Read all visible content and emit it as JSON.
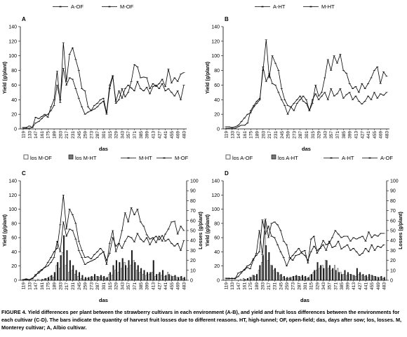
{
  "caption": {
    "text": "FIGURE 4. Yield differences per plant between the strawberry cultivars in each environment (A-B), and yield and fruit loss differences between the environments for each cultivar (C-D). The bars indicate the quantity of harvest fruit losses due to different reasons. HT, high-tunnel; OF, open-field; das, days after sow; los, losses. M, Monterey cultivar; A, Albio cultivar."
  },
  "chart_data": [
    {
      "type": "line",
      "panel_label": "A",
      "ylabel": "Yield (g/plant)",
      "xlabel": "das",
      "ylim": [
        0,
        140
      ],
      "yticks": [
        0,
        20,
        40,
        60,
        80,
        100,
        120,
        140
      ],
      "categories": [
        "119",
        "133",
        "147",
        "161",
        "175",
        "189",
        "203",
        "217",
        "231",
        "245",
        "259",
        "273",
        "287",
        "301",
        "315",
        "329",
        "343",
        "357",
        "371",
        "385",
        "399",
        "413",
        "427",
        "441",
        "455",
        "469",
        "483"
      ],
      "x": [
        119,
        126,
        133,
        140,
        147,
        154,
        161,
        168,
        175,
        182,
        189,
        196,
        203,
        210,
        217,
        224,
        231,
        238,
        245,
        252,
        259,
        266,
        273,
        280,
        287,
        294,
        301,
        308,
        315,
        322,
        329,
        336,
        343,
        350,
        357,
        364,
        371,
        378,
        385,
        392,
        399,
        406,
        413,
        420,
        427,
        434,
        441,
        448,
        455,
        462,
        469,
        476,
        483
      ],
      "legend": [
        {
          "label": "A-OF",
          "marker": "-"
        },
        {
          "label": "M-OF",
          "marker": "-"
        }
      ],
      "series": [
        {
          "name": "A-OF",
          "marker": "-",
          "values": [
            2,
            2,
            4,
            2,
            16,
            14,
            17,
            20,
            16,
            30,
            40,
            79,
            36,
            118,
            65,
            102,
            111,
            95,
            80,
            55,
            52,
            30,
            25,
            32,
            35,
            40,
            42,
            22,
            60,
            73,
            35,
            40,
            55,
            44,
            50,
            65,
            88,
            85,
            70,
            71,
            70,
            55,
            62,
            58,
            62,
            68,
            58,
            82,
            63,
            70,
            65,
            75,
            77
          ]
        },
        {
          "name": "M-OF",
          "marker": "-",
          "values": [
            1,
            1,
            1,
            2,
            8,
            10,
            14,
            18,
            20,
            25,
            32,
            60,
            40,
            83,
            60,
            70,
            68,
            55,
            42,
            30,
            20,
            23,
            25,
            27,
            30,
            35,
            38,
            20,
            55,
            72,
            38,
            52,
            42,
            55,
            60,
            56,
            52,
            65,
            55,
            52,
            57,
            48,
            58,
            60,
            55,
            62,
            52,
            55,
            50,
            45,
            52,
            40,
            60
          ]
        }
      ]
    },
    {
      "type": "line",
      "panel_label": "B",
      "ylabel": "Yield (g/plant)",
      "xlabel": "das",
      "ylim": [
        0,
        140
      ],
      "yticks": [
        0,
        20,
        40,
        60,
        80,
        100,
        120,
        140
      ],
      "categories": [
        "119",
        "133",
        "147",
        "161",
        "175",
        "189",
        "203",
        "217",
        "231",
        "245",
        "259",
        "273",
        "287",
        "301",
        "315",
        "329",
        "343",
        "357",
        "371",
        "385",
        "399",
        "413",
        "427",
        "441",
        "455",
        "469",
        "483"
      ],
      "x": [
        119,
        126,
        133,
        140,
        147,
        154,
        161,
        168,
        175,
        182,
        189,
        196,
        203,
        210,
        217,
        224,
        231,
        238,
        245,
        252,
        259,
        266,
        273,
        280,
        287,
        294,
        301,
        308,
        315,
        322,
        329,
        336,
        343,
        350,
        357,
        364,
        371,
        378,
        385,
        392,
        399,
        406,
        413,
        420,
        427,
        434,
        441,
        448,
        455,
        462,
        469,
        476,
        483
      ],
      "legend": [
        {
          "label": "A-HT",
          "marker": "-"
        },
        {
          "label": "M-HT",
          "marker": "-"
        }
      ],
      "series": [
        {
          "name": "A-HT",
          "marker": "-",
          "values": [
            3,
            3,
            2,
            3,
            5,
            10,
            15,
            20,
            22,
            30,
            35,
            40,
            85,
            65,
            75,
            62,
            60,
            50,
            40,
            32,
            20,
            30,
            35,
            40,
            45,
            38,
            35,
            25,
            40,
            48,
            40,
            45,
            50,
            40,
            55,
            45,
            48,
            55,
            42,
            47,
            50,
            40,
            45,
            38,
            34,
            38,
            45,
            40,
            50,
            42,
            48,
            46,
            50
          ]
        },
        {
          "name": "M-HT",
          "marker": "-",
          "values": [
            1,
            1,
            1,
            1,
            3,
            5,
            5,
            8,
            25,
            32,
            38,
            42,
            80,
            122,
            70,
            100,
            90,
            80,
            55,
            40,
            32,
            30,
            25,
            35,
            40,
            45,
            40,
            25,
            35,
            60,
            45,
            50,
            70,
            95,
            80,
            100,
            90,
            102,
            80,
            76,
            62,
            55,
            58,
            50,
            62,
            55,
            62,
            70,
            80,
            85,
            62,
            78,
            72
          ]
        }
      ]
    },
    {
      "type": "line+bar",
      "panel_label": "C",
      "ylabel": "Yield (g/plant)",
      "ylabel_right": "Losses (g/plant)",
      "xlabel": "das",
      "ylim": [
        0,
        140
      ],
      "yticks": [
        0,
        20,
        40,
        60,
        80,
        100,
        120,
        140
      ],
      "ylim_right": [
        0,
        100
      ],
      "yticks_right": [
        0,
        10,
        20,
        30,
        40,
        50,
        60,
        70,
        80,
        90,
        100
      ],
      "categories": [
        "119",
        "133",
        "147",
        "161",
        "175",
        "189",
        "203",
        "217",
        "231",
        "245",
        "259",
        "273",
        "287",
        "301",
        "315",
        "329",
        "343",
        "357",
        "371",
        "385",
        "399",
        "413",
        "427",
        "441",
        "455",
        "469",
        "483"
      ],
      "x": [
        119,
        126,
        133,
        140,
        147,
        154,
        161,
        168,
        175,
        182,
        189,
        196,
        203,
        210,
        217,
        224,
        231,
        238,
        245,
        252,
        259,
        266,
        273,
        280,
        287,
        294,
        301,
        308,
        315,
        322,
        329,
        336,
        343,
        350,
        357,
        364,
        371,
        378,
        385,
        392,
        399,
        406,
        413,
        420,
        427,
        434,
        441,
        448,
        455,
        462,
        469,
        476,
        483
      ],
      "legend": [
        {
          "label": "los M-OF",
          "marker": "bar-open"
        },
        {
          "label": "los M-HT",
          "marker": "bar-filled"
        },
        {
          "label": "M-HT",
          "marker": "-"
        },
        {
          "label": "M-OF",
          "marker": "-"
        }
      ],
      "series": [
        {
          "name": "M-HT",
          "marker": "-",
          "values": [
            1,
            2,
            1,
            3,
            6,
            12,
            15,
            18,
            25,
            32,
            40,
            45,
            78,
            120,
            72,
            100,
            92,
            80,
            55,
            42,
            32,
            33,
            30,
            36,
            40,
            45,
            40,
            28,
            38,
            60,
            48,
            52,
            70,
            95,
            82,
            102,
            92,
            100,
            82,
            76,
            64,
            58,
            60,
            53,
            62,
            55,
            65,
            72,
            82,
            83,
            65,
            76,
            70
          ]
        },
        {
          "name": "M-OF",
          "marker": "-",
          "values": [
            1,
            1,
            1,
            2,
            8,
            10,
            14,
            18,
            20,
            25,
            32,
            55,
            40,
            82,
            62,
            72,
            70,
            58,
            42,
            32,
            22,
            25,
            27,
            29,
            32,
            37,
            40,
            22,
            52,
            70,
            40,
            52,
            45,
            55,
            62,
            60,
            54,
            66,
            58,
            54,
            60,
            50,
            58,
            62,
            57,
            63,
            55,
            58,
            52,
            48,
            52,
            42,
            56
          ]
        },
        {
          "name": "los M-OF",
          "marker": "bar-open",
          "values": [
            0,
            0,
            0,
            0,
            0,
            1,
            0,
            1,
            2,
            4,
            3,
            15,
            12,
            28,
            15,
            8,
            10,
            6,
            4,
            2,
            1,
            2,
            3,
            3,
            4,
            3,
            3,
            2,
            6,
            5,
            10,
            8,
            12,
            18,
            12,
            15,
            20,
            10,
            8,
            6,
            5,
            6,
            8,
            4,
            6,
            5,
            4,
            8,
            5,
            4,
            3,
            3,
            2
          ]
        },
        {
          "name": "los M-HT",
          "marker": "bar-filled",
          "values": [
            0,
            0,
            0,
            0,
            0,
            0,
            1,
            2,
            3,
            5,
            8,
            18,
            25,
            45,
            30,
            20,
            15,
            10,
            8,
            5,
            3,
            3,
            4,
            6,
            4,
            5,
            4,
            3,
            8,
            15,
            20,
            18,
            22,
            15,
            20,
            30,
            18,
            15,
            12,
            10,
            8,
            8,
            20,
            6,
            8,
            10,
            5,
            6,
            4,
            5,
            3,
            4,
            3
          ]
        }
      ]
    },
    {
      "type": "line+bar",
      "panel_label": "D",
      "ylabel": "Yield (g/plant)",
      "ylabel_right": "Losses (g/plant)",
      "xlabel": "das",
      "ylim": [
        0,
        140
      ],
      "yticks": [
        0,
        20,
        40,
        60,
        80,
        100,
        120,
        140
      ],
      "ylim_right": [
        0,
        100
      ],
      "yticks_right": [
        0,
        10,
        20,
        30,
        40,
        50,
        60,
        70,
        80,
        90,
        100
      ],
      "categories": [
        "119",
        "133",
        "147",
        "161",
        "175",
        "189",
        "203",
        "217",
        "231",
        "245",
        "259",
        "273",
        "287",
        "301",
        "315",
        "329",
        "343",
        "357",
        "371",
        "385",
        "399",
        "413",
        "427",
        "441",
        "455",
        "469",
        "483"
      ],
      "x": [
        119,
        126,
        133,
        140,
        147,
        154,
        161,
        168,
        175,
        182,
        189,
        196,
        203,
        210,
        217,
        224,
        231,
        238,
        245,
        252,
        259,
        266,
        273,
        280,
        287,
        294,
        301,
        308,
        315,
        322,
        329,
        336,
        343,
        350,
        357,
        364,
        371,
        378,
        385,
        392,
        399,
        406,
        413,
        420,
        427,
        434,
        441,
        448,
        455,
        462,
        469,
        476,
        483
      ],
      "legend": [
        {
          "label": "los A-OF",
          "marker": "bar-open"
        },
        {
          "label": "los A-HT",
          "marker": "bar-filled"
        },
        {
          "label": "A-HT",
          "marker": "-"
        },
        {
          "label": "A-OF",
          "marker": "-"
        }
      ],
      "series": [
        {
          "name": "A-HT",
          "marker": "-",
          "values": [
            3,
            3,
            2,
            3,
            5,
            10,
            15,
            20,
            22,
            30,
            35,
            40,
            85,
            65,
            76,
            62,
            60,
            50,
            40,
            32,
            20,
            30,
            35,
            40,
            45,
            38,
            35,
            28,
            40,
            48,
            42,
            45,
            50,
            42,
            55,
            46,
            48,
            55,
            44,
            47,
            50,
            42,
            45,
            40,
            35,
            38,
            45,
            40,
            50,
            42,
            48,
            46,
            50
          ]
        },
        {
          "name": "A-OF",
          "marker": "-",
          "values": [
            2,
            2,
            3,
            2,
            10,
            12,
            14,
            18,
            16,
            28,
            38,
            70,
            36,
            86,
            60,
            80,
            82,
            78,
            70,
            55,
            50,
            32,
            28,
            35,
            36,
            40,
            42,
            24,
            58,
            62,
            38,
            45,
            56,
            50,
            52,
            60,
            70,
            65,
            60,
            62,
            62,
            55,
            60,
            58,
            60,
            62,
            55,
            68,
            60,
            64,
            62,
            66,
            66
          ]
        },
        {
          "name": "los A-OF",
          "marker": "bar-open",
          "values": [
            0,
            0,
            0,
            0,
            0,
            1,
            2,
            1,
            3,
            5,
            4,
            10,
            18,
            60,
            20,
            15,
            10,
            8,
            5,
            3,
            2,
            2,
            3,
            4,
            4,
            3,
            3,
            2,
            5,
            8,
            10,
            12,
            15,
            20,
            12,
            10,
            15,
            12,
            8,
            6,
            5,
            6,
            5,
            4,
            6,
            5,
            4,
            3,
            5,
            4,
            3,
            3,
            2
          ]
        },
        {
          "name": "los A-HT",
          "marker": "bar-filled",
          "values": [
            0,
            0,
            0,
            0,
            0,
            0,
            1,
            2,
            3,
            5,
            6,
            15,
            25,
            35,
            28,
            15,
            12,
            8,
            6,
            4,
            3,
            3,
            4,
            5,
            4,
            5,
            4,
            3,
            6,
            10,
            18,
            15,
            12,
            20,
            15,
            12,
            10,
            8,
            6,
            10,
            8,
            6,
            5,
            12,
            8,
            6,
            5,
            6,
            5,
            4,
            3,
            4,
            3
          ]
        }
      ]
    }
  ]
}
